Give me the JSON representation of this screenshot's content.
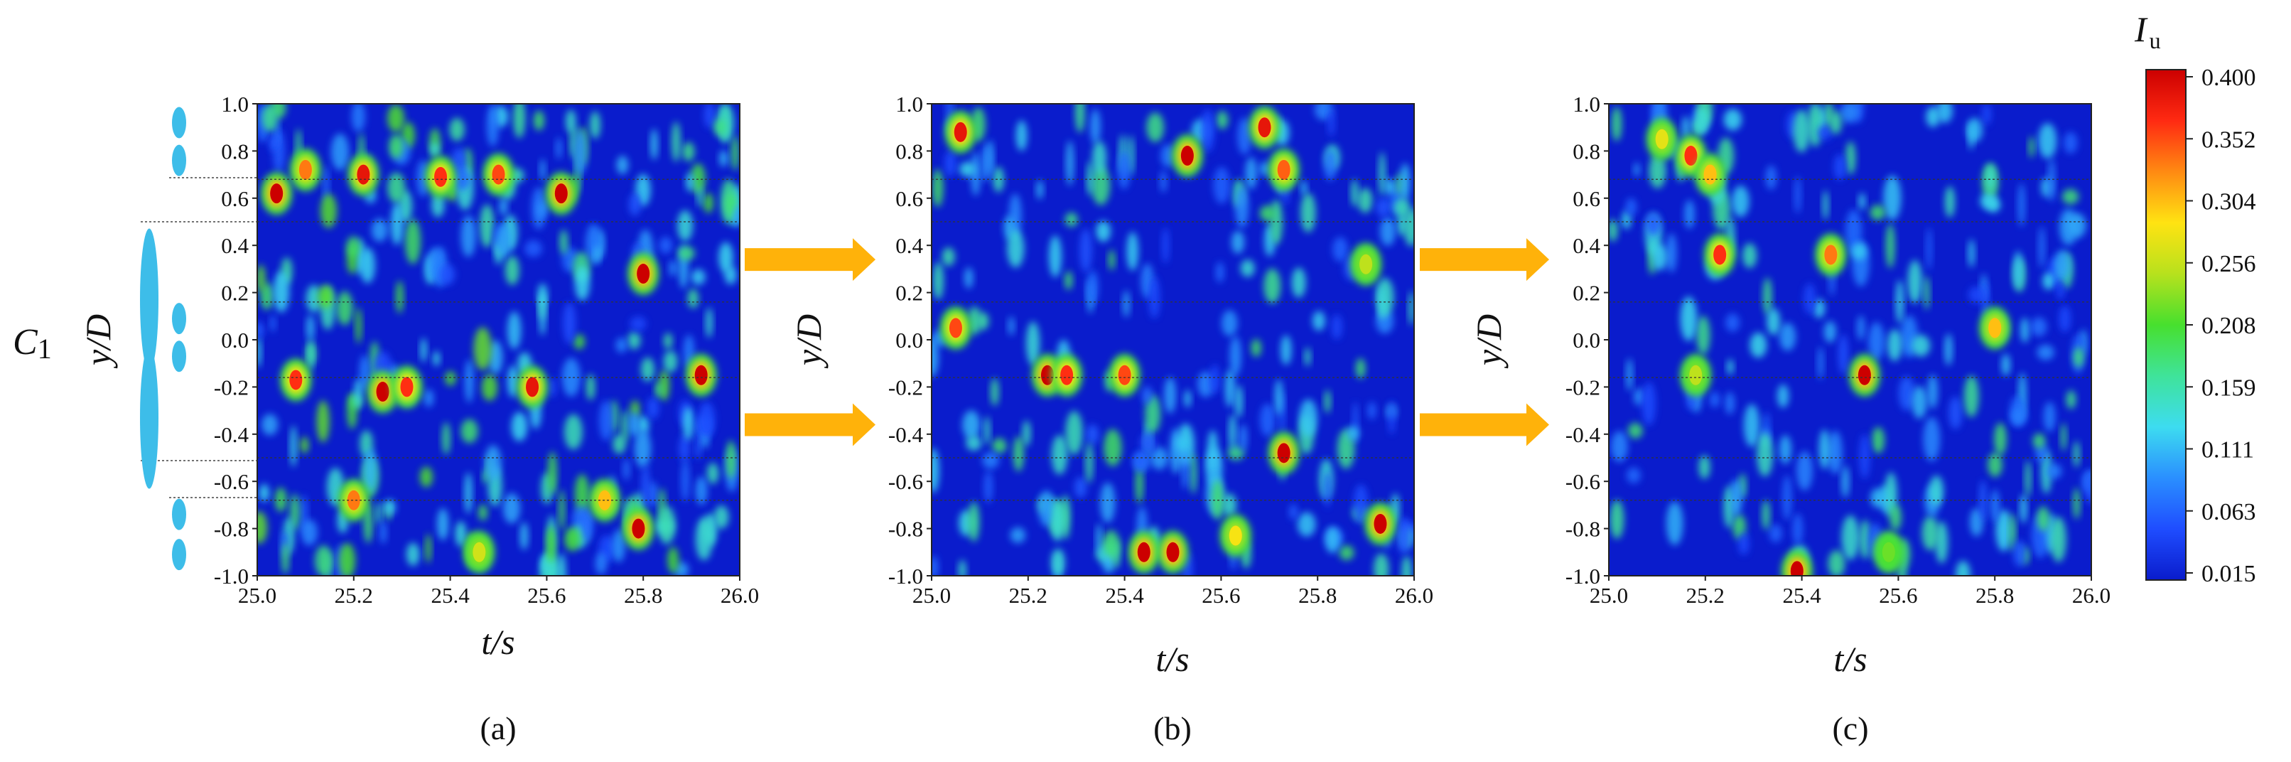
{
  "chart_data": [
    {
      "type": "heatmap",
      "panel_label": "(a)",
      "xlabel": "t/s",
      "ylabel": "y/D",
      "xlim": [
        25.0,
        26.0
      ],
      "ylim": [
        -1.0,
        1.0
      ],
      "x_ticks": [
        "25.0",
        "25.2",
        "25.4",
        "25.6",
        "25.8",
        "26.0"
      ],
      "y_ticks": [
        "-1.0",
        "-0.8",
        "-0.6",
        "-0.4",
        "-0.2",
        "0.0",
        "0.2",
        "0.4",
        "0.6",
        "0.8",
        "1.0"
      ],
      "reference_lines_y": [
        0.68,
        0.5,
        0.16,
        -0.16,
        -0.5,
        -0.68
      ],
      "side_label": "C",
      "side_label_sub": "1",
      "high_intensity_regions": [
        {
          "t": 25.04,
          "y": 0.62,
          "value": 0.4
        },
        {
          "t": 25.1,
          "y": 0.72,
          "value": 0.33
        },
        {
          "t": 25.22,
          "y": 0.7,
          "value": 0.38
        },
        {
          "t": 25.38,
          "y": 0.69,
          "value": 0.36
        },
        {
          "t": 25.5,
          "y": 0.7,
          "value": 0.35
        },
        {
          "t": 25.63,
          "y": 0.62,
          "value": 0.4
        },
        {
          "t": 25.8,
          "y": 0.28,
          "value": 0.4
        },
        {
          "t": 25.26,
          "y": -0.22,
          "value": 0.4
        },
        {
          "t": 25.31,
          "y": -0.2,
          "value": 0.36
        },
        {
          "t": 25.57,
          "y": -0.2,
          "value": 0.38
        },
        {
          "t": 25.92,
          "y": -0.15,
          "value": 0.4
        },
        {
          "t": 25.72,
          "y": -0.68,
          "value": 0.3
        },
        {
          "t": 25.79,
          "y": -0.8,
          "value": 0.4
        },
        {
          "t": 25.2,
          "y": -0.68,
          "value": 0.33
        },
        {
          "t": 25.08,
          "y": -0.17,
          "value": 0.36
        },
        {
          "t": 25.46,
          "y": -0.9,
          "value": 0.26
        }
      ]
    },
    {
      "type": "heatmap",
      "panel_label": "(b)",
      "xlabel": "t/s",
      "ylabel": "y/D",
      "xlim": [
        25.0,
        26.0
      ],
      "ylim": [
        -1.0,
        1.0
      ],
      "x_ticks": [
        "25.0",
        "25.2",
        "25.4",
        "25.6",
        "25.8",
        "26.0"
      ],
      "y_ticks": [
        "-1.0",
        "-0.8",
        "-0.6",
        "-0.4",
        "-0.2",
        "0.0",
        "0.2",
        "0.4",
        "0.6",
        "0.8",
        "1.0"
      ],
      "reference_lines_y": [
        0.68,
        0.5,
        0.16,
        -0.16,
        -0.5,
        -0.68
      ],
      "high_intensity_regions": [
        {
          "t": 25.06,
          "y": 0.88,
          "value": 0.38
        },
        {
          "t": 25.53,
          "y": 0.78,
          "value": 0.4
        },
        {
          "t": 25.69,
          "y": 0.9,
          "value": 0.38
        },
        {
          "t": 25.73,
          "y": 0.72,
          "value": 0.34
        },
        {
          "t": 25.05,
          "y": 0.05,
          "value": 0.35
        },
        {
          "t": 25.24,
          "y": -0.15,
          "value": 0.4
        },
        {
          "t": 25.28,
          "y": -0.15,
          "value": 0.36
        },
        {
          "t": 25.4,
          "y": -0.15,
          "value": 0.35
        },
        {
          "t": 25.73,
          "y": -0.48,
          "value": 0.4
        },
        {
          "t": 25.44,
          "y": -0.9,
          "value": 0.4
        },
        {
          "t": 25.5,
          "y": -0.9,
          "value": 0.4
        },
        {
          "t": 25.93,
          "y": -0.78,
          "value": 0.4
        },
        {
          "t": 25.63,
          "y": -0.83,
          "value": 0.28
        },
        {
          "t": 25.9,
          "y": 0.32,
          "value": 0.25
        }
      ]
    },
    {
      "type": "heatmap",
      "panel_label": "(c)",
      "xlabel": "t/s",
      "ylabel": "y/D",
      "xlim": [
        25.0,
        26.0
      ],
      "ylim": [
        -1.0,
        1.0
      ],
      "x_ticks": [
        "25.0",
        "25.2",
        "25.4",
        "25.6",
        "25.8",
        "26.0"
      ],
      "y_ticks": [
        "-1.0",
        "-0.8",
        "-0.6",
        "-0.4",
        "-0.2",
        "0.0",
        "0.2",
        "0.4",
        "0.6",
        "0.8",
        "1.0"
      ],
      "reference_lines_y": [
        0.68,
        0.5,
        0.16,
        -0.16,
        -0.5,
        -0.68
      ],
      "high_intensity_regions": [
        {
          "t": 25.17,
          "y": 0.78,
          "value": 0.36
        },
        {
          "t": 25.23,
          "y": 0.36,
          "value": 0.36
        },
        {
          "t": 25.46,
          "y": 0.36,
          "value": 0.33
        },
        {
          "t": 25.53,
          "y": -0.15,
          "value": 0.4
        },
        {
          "t": 25.39,
          "y": -0.98,
          "value": 0.4
        },
        {
          "t": 25.18,
          "y": -0.15,
          "value": 0.25
        },
        {
          "t": 25.21,
          "y": 0.7,
          "value": 0.3
        },
        {
          "t": 25.58,
          "y": -0.9,
          "value": 0.22
        },
        {
          "t": 25.8,
          "y": 0.05,
          "value": 0.3
        },
        {
          "t": 25.11,
          "y": 0.85,
          "value": 0.27
        }
      ]
    }
  ],
  "colorbar": {
    "title": "I",
    "title_sub": "u",
    "ticks": [
      "0.400",
      "0.352",
      "0.304",
      "0.256",
      "0.208",
      "0.159",
      "0.111",
      "0.063",
      "0.015"
    ],
    "range": [
      0.015,
      0.4
    ],
    "colors": [
      "#0a1ccc",
      "#1f4dff",
      "#2a8fff",
      "#3ddcf0",
      "#3fe39a",
      "#47e02e",
      "#b7e11d",
      "#ffe312",
      "#ff8a12",
      "#ff2a12",
      "#cc0000"
    ]
  },
  "arrows": [
    {
      "from": "(a)",
      "to": "(b)",
      "y": 0.34
    },
    {
      "from": "(a)",
      "to": "(b)",
      "y": -0.36
    },
    {
      "from": "(b)",
      "to": "(c)",
      "y": 0.34
    },
    {
      "from": "(b)",
      "to": "(c)",
      "y": -0.36
    }
  ],
  "arrow_color": "#ffb20a",
  "turbine_color": "#3dbde9",
  "background_color": "#0a1ccc"
}
